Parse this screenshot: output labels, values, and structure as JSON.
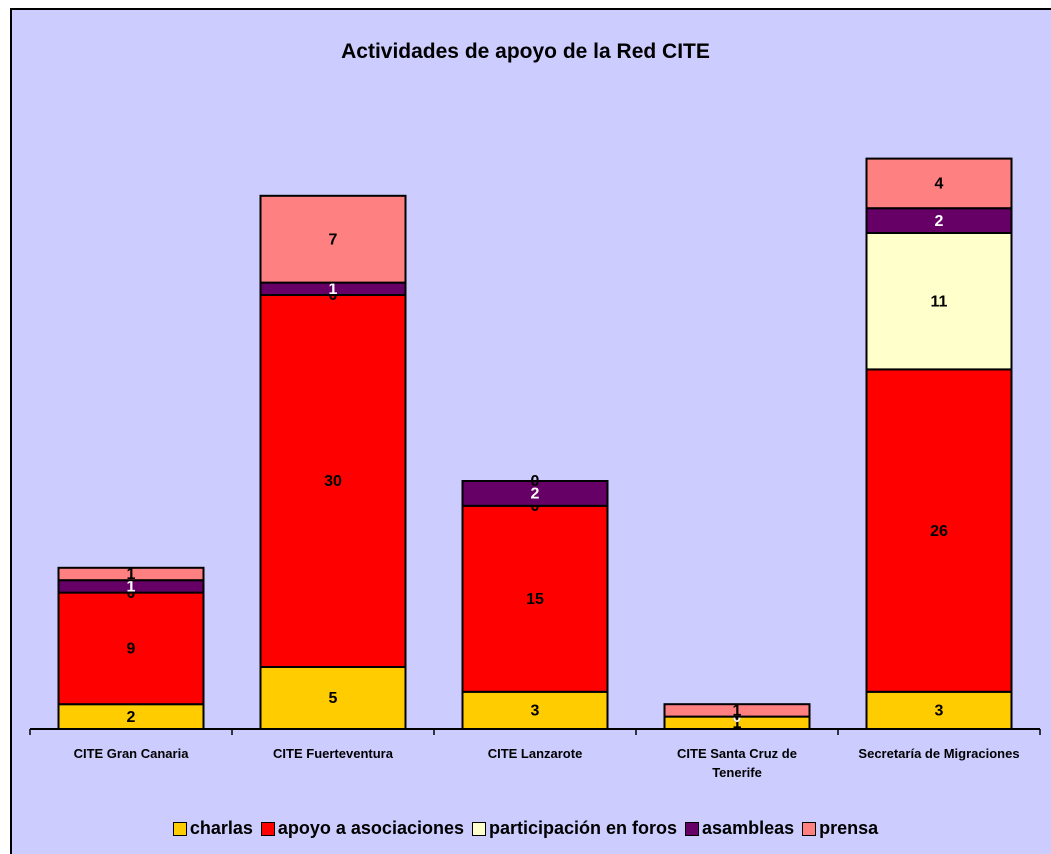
{
  "chart_data": {
    "type": "bar",
    "stacked": true,
    "title": "Actividades de apoyo de la Red CITE",
    "categories": [
      "CITE Gran Canaria",
      "CITE Fuerteventura",
      "CITE Lanzarote",
      "CITE Santa Cruz de Tenerife",
      "Secretaría de Migraciones"
    ],
    "series": [
      {
        "name": "charlas",
        "color": "#ffcc00",
        "label_color": "#000000",
        "values": [
          2,
          5,
          3,
          1,
          3
        ]
      },
      {
        "name": "apoyo a asociaciones",
        "color": "#ff0000",
        "label_color": "#000000",
        "values": [
          9,
          30,
          15,
          0,
          26
        ]
      },
      {
        "name": "participación en foros",
        "color": "#ffffcc",
        "label_color": "#000000",
        "values": [
          0,
          0,
          0,
          0,
          11
        ]
      },
      {
        "name": "asambleas",
        "color": "#660066",
        "label_color": "#ffffff",
        "values": [
          1,
          1,
          2,
          0,
          2
        ]
      },
      {
        "name": "prensa",
        "color": "#ff8080",
        "label_color": "#000000",
        "values": [
          1,
          7,
          0,
          1,
          4
        ]
      }
    ],
    "ylim": [
      0,
      50
    ],
    "legend": "bottom",
    "background": "#ccccff"
  }
}
